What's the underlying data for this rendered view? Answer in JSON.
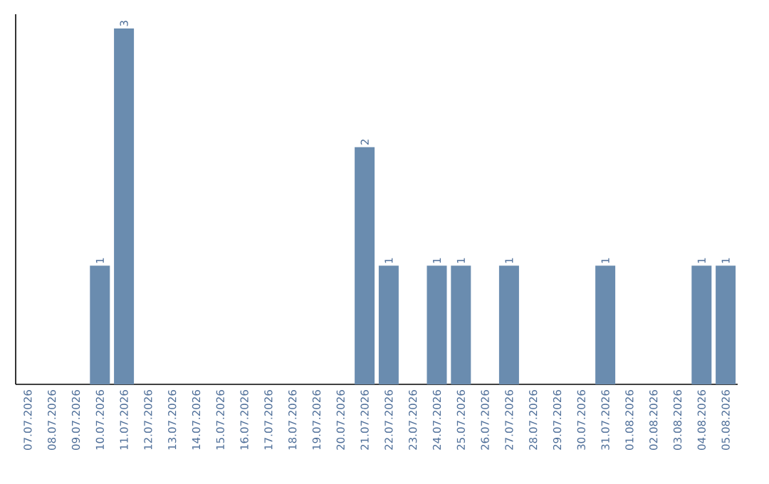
{
  "chart_data": {
    "type": "bar",
    "categories": [
      "07.07.2026",
      "08.07.2026",
      "09.07.2026",
      "10.07.2026",
      "11.07.2026",
      "12.07.2026",
      "13.07.2026",
      "14.07.2026",
      "15.07.2026",
      "16.07.2026",
      "17.07.2026",
      "18.07.2026",
      "19.07.2026",
      "20.07.2026",
      "21.07.2026",
      "22.07.2026",
      "23.07.2026",
      "24.07.2026",
      "25.07.2026",
      "26.07.2026",
      "27.07.2026",
      "28.07.2026",
      "29.07.2026",
      "30.07.2026",
      "31.07.2026",
      "01.08.2026",
      "02.08.2026",
      "03.08.2026",
      "04.08.2026",
      "05.08.2026"
    ],
    "values": [
      0,
      0,
      0,
      1,
      3,
      0,
      0,
      0,
      0,
      0,
      0,
      0,
      0,
      0,
      2,
      1,
      0,
      1,
      1,
      0,
      1,
      0,
      0,
      0,
      1,
      0,
      0,
      0,
      1,
      1
    ],
    "value_labels": [
      null,
      null,
      null,
      "1",
      "3",
      null,
      null,
      null,
      null,
      null,
      null,
      null,
      null,
      null,
      "2",
      "1",
      null,
      "1",
      "1",
      null,
      "1",
      null,
      null,
      null,
      "1",
      null,
      null,
      null,
      "1",
      "1"
    ],
    "color": "#6a8caf",
    "ylim": [
      0,
      3.12
    ],
    "tick_labels": "x",
    "grid": false
  }
}
